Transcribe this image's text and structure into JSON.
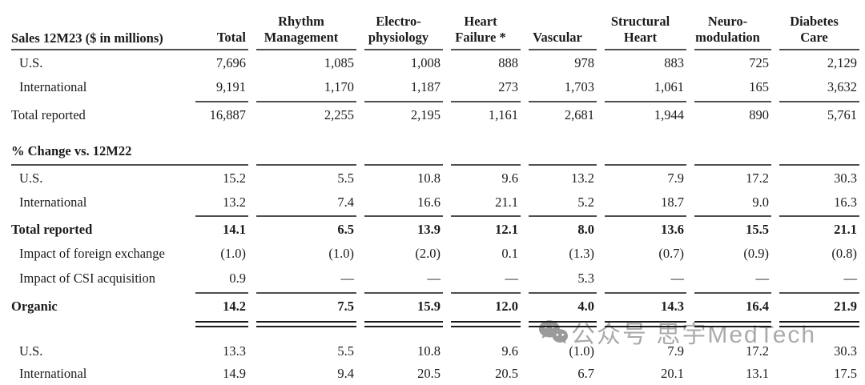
{
  "page": {
    "background": "#ffffff",
    "text_color": "#1b1b1b",
    "rule_color": "#4f4f4f"
  },
  "table": {
    "header": {
      "label": "Sales 12M23 ($ in millions)",
      "columns": [
        "Total",
        "Rhythm\nManagement",
        "Electro-\nphysiology",
        "Heart\nFailure *",
        "Vascular",
        "Structural\nHeart",
        "Neuro-\nmodulation",
        "Diabetes\nCare"
      ]
    },
    "sales": {
      "rows": [
        {
          "label": "U.S.",
          "values": [
            "7,696",
            "1,085",
            "1,008",
            "888",
            "978",
            "883",
            "725",
            "2,129"
          ]
        },
        {
          "label": "International",
          "values": [
            "9,191",
            "1,170",
            "1,187",
            "273",
            "1,703",
            "1,061",
            "165",
            "3,632"
          ]
        },
        {
          "label": "Total reported",
          "values": [
            "16,887",
            "2,255",
            "2,195",
            "1,161",
            "2,681",
            "1,944",
            "890",
            "5,761"
          ]
        }
      ]
    },
    "pct_change": {
      "section_label": "% Change vs. 12M22",
      "rows": [
        {
          "label": "U.S.",
          "values": [
            "15.2",
            "5.5",
            "10.8",
            "9.6",
            "13.2",
            "7.9",
            "17.2",
            "30.3"
          ]
        },
        {
          "label": "International",
          "values": [
            "13.2",
            "7.4",
            "16.6",
            "21.1",
            "5.2",
            "18.7",
            "9.0",
            "16.3"
          ]
        },
        {
          "label": "Total reported",
          "values": [
            "14.1",
            "6.5",
            "13.9",
            "12.1",
            "8.0",
            "13.6",
            "15.5",
            "21.1"
          ]
        },
        {
          "label": "Impact of foreign exchange",
          "values": [
            "(1.0)",
            "(1.0)",
            "(2.0)",
            "0.1",
            "(1.3)",
            "(0.7)",
            "(0.9)",
            "(0.8)"
          ]
        },
        {
          "label": "Impact of CSI acquisition",
          "values": [
            "0.9",
            "—",
            "—",
            "—",
            "5.3",
            "—",
            "—",
            "—"
          ]
        },
        {
          "label": "Organic",
          "values": [
            "14.2",
            "7.5",
            "15.9",
            "12.0",
            "4.0",
            "14.3",
            "16.4",
            "21.9"
          ]
        },
        {
          "label": "U.S.",
          "values": [
            "13.3",
            "5.5",
            "10.8",
            "9.6",
            "(1.0)",
            "7.9",
            "17.2",
            "30.3"
          ]
        },
        {
          "label": "International",
          "values": [
            "14.9",
            "9.4",
            "20.5",
            "20.5",
            "6.7",
            "20.1",
            "13.1",
            "17.5"
          ]
        }
      ]
    }
  },
  "watermark": {
    "icon": "wechat-icon",
    "text": "公众号 思宇MedTech",
    "color": "#ababab"
  }
}
